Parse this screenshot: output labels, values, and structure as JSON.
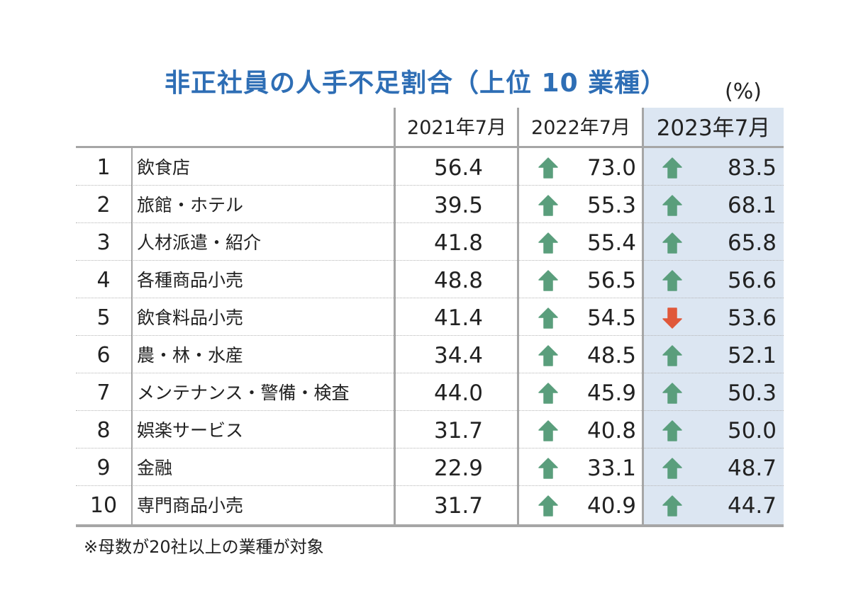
{
  "title": "非正社員の人手不足割合（上位 10 業種）",
  "unit": "(%)",
  "note": "※母数が20社以上の業種が対象",
  "colors": {
    "up": "#5a9e7c",
    "down": "#e0583a",
    "highlight": "#dce6f2",
    "title": "#2e6eb5"
  },
  "chart_data": {
    "type": "table",
    "columns": [
      "2021年7月",
      "2022年7月",
      "2023年7月"
    ],
    "rows": [
      {
        "rank": "1",
        "industry": "飲食店",
        "v2021": "56.4",
        "v2022": "73.0",
        "v2023": "83.5",
        "trend2022": "up",
        "trend2023": "up"
      },
      {
        "rank": "2",
        "industry": "旅館・ホテル",
        "v2021": "39.5",
        "v2022": "55.3",
        "v2023": "68.1",
        "trend2022": "up",
        "trend2023": "up"
      },
      {
        "rank": "3",
        "industry": "人材派遣・紹介",
        "v2021": "41.8",
        "v2022": "55.4",
        "v2023": "65.8",
        "trend2022": "up",
        "trend2023": "up"
      },
      {
        "rank": "4",
        "industry": "各種商品小売",
        "v2021": "48.8",
        "v2022": "56.5",
        "v2023": "56.6",
        "trend2022": "up",
        "trend2023": "up"
      },
      {
        "rank": "5",
        "industry": "飲食料品小売",
        "v2021": "41.4",
        "v2022": "54.5",
        "v2023": "53.6",
        "trend2022": "up",
        "trend2023": "down"
      },
      {
        "rank": "6",
        "industry": "農・林・水産",
        "v2021": "34.4",
        "v2022": "48.5",
        "v2023": "52.1",
        "trend2022": "up",
        "trend2023": "up"
      },
      {
        "rank": "7",
        "industry": "メンテナンス・警備・検査",
        "v2021": "44.0",
        "v2022": "45.9",
        "v2023": "50.3",
        "trend2022": "up",
        "trend2023": "up"
      },
      {
        "rank": "8",
        "industry": "娯楽サービス",
        "v2021": "31.7",
        "v2022": "40.8",
        "v2023": "50.0",
        "trend2022": "up",
        "trend2023": "up"
      },
      {
        "rank": "9",
        "industry": "金融",
        "v2021": "22.9",
        "v2022": "33.1",
        "v2023": "48.7",
        "trend2022": "up",
        "trend2023": "up"
      },
      {
        "rank": "10",
        "industry": "専門商品小売",
        "v2021": "31.7",
        "v2022": "40.9",
        "v2023": "44.7",
        "trend2022": "up",
        "trend2023": "up"
      }
    ]
  }
}
